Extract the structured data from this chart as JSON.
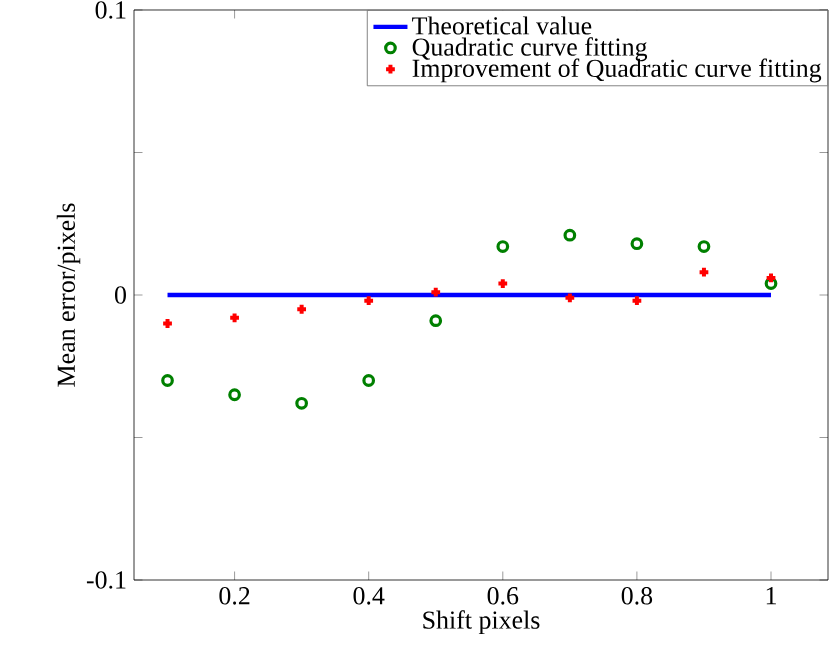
{
  "chart_data": {
    "type": "scatter",
    "xlabel": "Shift pixels",
    "ylabel": "Mean error/pixels",
    "x": [
      0.1,
      0.2,
      0.3,
      0.4,
      0.5,
      0.6,
      0.7,
      0.8,
      0.9,
      1.0
    ],
    "series": [
      {
        "name": "Theoretical value",
        "type": "line",
        "color": "#0000ff",
        "x": [
          0.1,
          1.0
        ],
        "values": [
          0,
          0
        ],
        "marker": "none",
        "line_style": "solid"
      },
      {
        "name": "Quadratic curve fitting",
        "color": "#008000",
        "marker": "circle",
        "values": [
          -0.03,
          -0.035,
          -0.038,
          -0.03,
          -0.009,
          0.017,
          0.021,
          0.018,
          0.017,
          0.004
        ]
      },
      {
        "name": "Improvement of Quadratic curve fitting",
        "color": "#ff0000",
        "marker": "cross",
        "values": [
          -0.01,
          -0.008,
          -0.005,
          -0.002,
          0.001,
          0.004,
          -0.001,
          -0.002,
          0.008,
          0.006
        ]
      }
    ],
    "xlim": [
      0.05,
      1.085
    ],
    "ylim": [
      -0.1,
      0.1
    ],
    "xticks": [
      0.2,
      0.4,
      0.6,
      0.8,
      1
    ],
    "yticks": [
      {
        "value": -0.1,
        "label": "-0.1"
      },
      {
        "value": -0.05,
        "label": null
      },
      {
        "value": 0,
        "label": "0"
      },
      {
        "value": 0.05,
        "label": null
      },
      {
        "value": 0.1,
        "label": "0.1"
      }
    ],
    "grid": false,
    "legend": "top right"
  }
}
